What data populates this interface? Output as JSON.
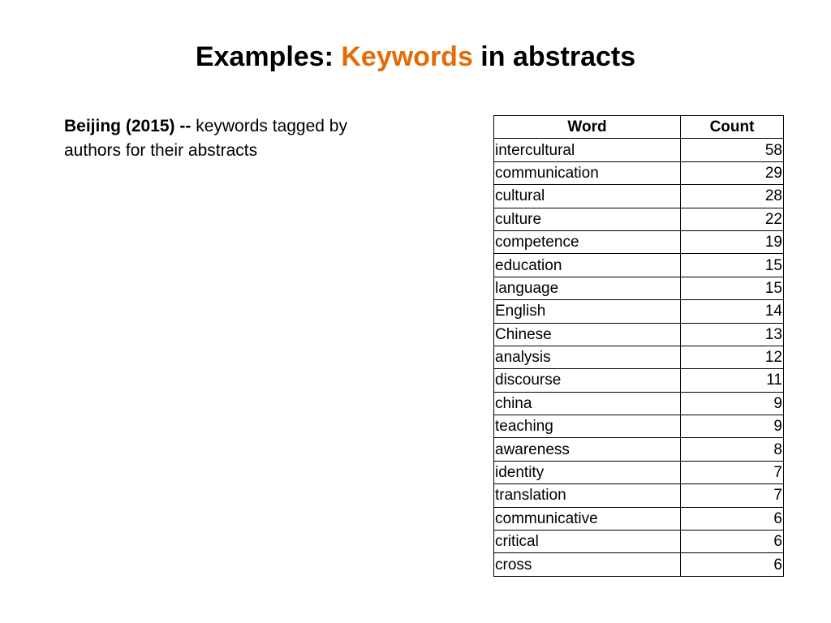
{
  "slide": {
    "title_pre": "Examples: ",
    "title_accent": "Keywords",
    "title_post": " in abstracts",
    "accent_color": "#e36c09",
    "desc_bold": "Beijing (2015) --",
    "desc_text": " keywords tagged by authors for their abstracts"
  },
  "table": {
    "headers": [
      "Word",
      "Count"
    ],
    "rows": [
      {
        "word": "intercultural",
        "count": "58"
      },
      {
        "word": "communication",
        "count": "29"
      },
      {
        "word": "cultural",
        "count": "28"
      },
      {
        "word": "culture",
        "count": "22"
      },
      {
        "word": "competence",
        "count": "19"
      },
      {
        "word": "education",
        "count": "15"
      },
      {
        "word": "language",
        "count": "15"
      },
      {
        "word": "English",
        "count": "14"
      },
      {
        "word": "Chinese",
        "count": "13"
      },
      {
        "word": "analysis",
        "count": "12"
      },
      {
        "word": "discourse",
        "count": "11"
      },
      {
        "word": "china",
        "count": "9"
      },
      {
        "word": "teaching",
        "count": "9"
      },
      {
        "word": "awareness",
        "count": "8"
      },
      {
        "word": "identity",
        "count": "7"
      },
      {
        "word": "translation",
        "count": "7"
      },
      {
        "word": "communicative",
        "count": "6"
      },
      {
        "word": "critical",
        "count": "6"
      },
      {
        "word": "cross",
        "count": "6"
      }
    ]
  }
}
